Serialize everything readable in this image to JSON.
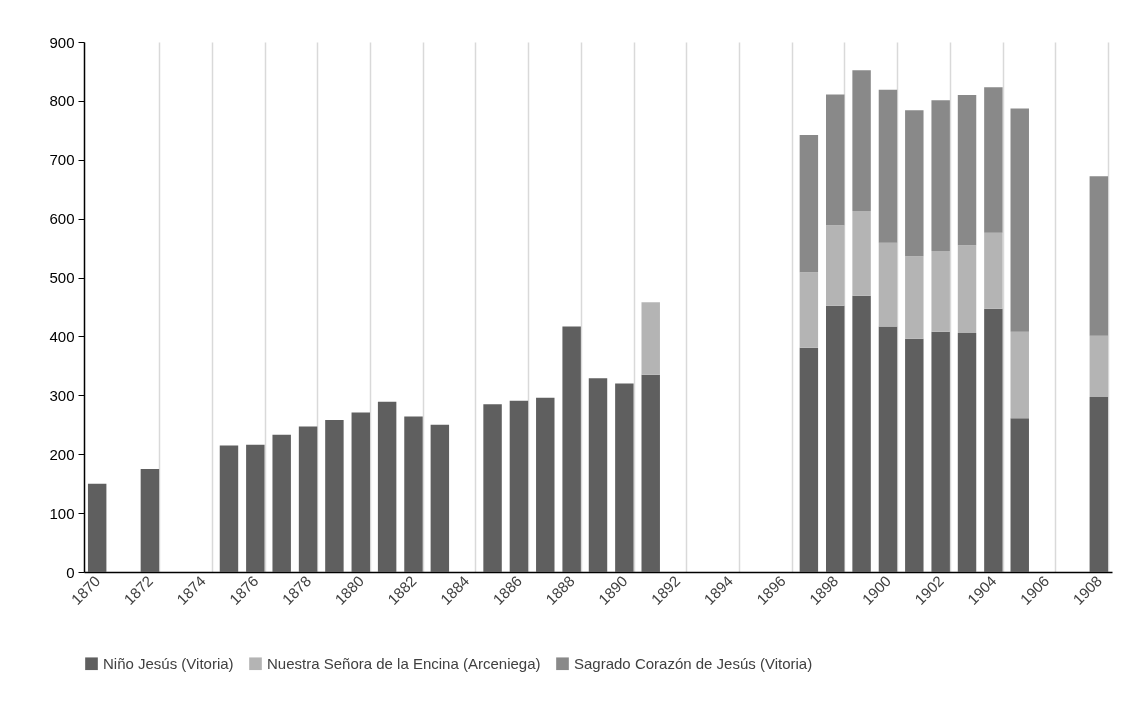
{
  "chart_data": {
    "type": "bar",
    "stacked": true,
    "categories": [
      "1870",
      null,
      "1872",
      null,
      "1874",
      null,
      "1876",
      null,
      "1878",
      null,
      "1880",
      null,
      "1882",
      null,
      "1884",
      null,
      "1886",
      null,
      "1888",
      null,
      "1890",
      null,
      "1892",
      null,
      "1894",
      null,
      "1896",
      null,
      "1898",
      null,
      "1900",
      null,
      "1902",
      null,
      "1904",
      null,
      "1906",
      null,
      "1908"
    ],
    "series": [
      {
        "name": "Niño Jesús (Vitoria)",
        "color": "#5f5f5f",
        "values": [
          150,
          null,
          175,
          null,
          null,
          215,
          216,
          233,
          247,
          258,
          271,
          289,
          264,
          250,
          null,
          285,
          291,
          296,
          417,
          329,
          320,
          335,
          null,
          null,
          null,
          null,
          null,
          381,
          452,
          469,
          417,
          396,
          408,
          406,
          447,
          261,
          null,
          null,
          297
        ]
      },
      {
        "name": "Nuestra Señora de la Encina (Arceniega)",
        "color": "#b4b4b4",
        "values": [
          null,
          null,
          null,
          null,
          null,
          null,
          null,
          null,
          null,
          null,
          null,
          null,
          null,
          null,
          null,
          null,
          null,
          null,
          null,
          null,
          null,
          123,
          null,
          null,
          null,
          null,
          null,
          128,
          137,
          144,
          142,
          140,
          137,
          149,
          129,
          147,
          null,
          null,
          104
        ]
      },
      {
        "name": "Sagrado Corazón de Jesús (Vitoria)",
        "color": "#898989",
        "values": [
          null,
          null,
          null,
          null,
          null,
          null,
          null,
          null,
          null,
          null,
          null,
          null,
          null,
          null,
          null,
          null,
          null,
          null,
          null,
          null,
          null,
          null,
          null,
          null,
          null,
          null,
          null,
          233,
          222,
          239,
          260,
          248,
          256,
          255,
          247,
          379,
          null,
          null,
          271
        ]
      }
    ],
    "ylim": [
      0,
      900
    ],
    "yticks": [
      0,
      100,
      200,
      300,
      400,
      500,
      600,
      700,
      800,
      900
    ],
    "grid": "x",
    "legend": "bottom"
  }
}
